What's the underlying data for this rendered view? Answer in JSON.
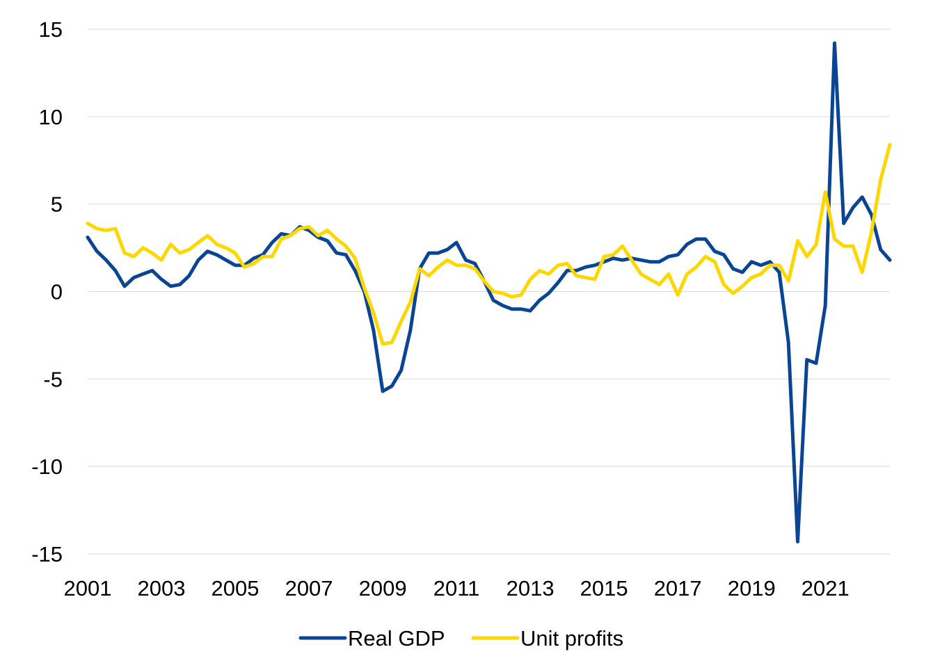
{
  "colors": {
    "background": "#ffffff",
    "grid": "#d9d9d9",
    "text": "#000000"
  },
  "chart_data": {
    "type": "line",
    "title": "",
    "xlabel": "",
    "ylabel": "",
    "xlim": [
      2001.0,
      2022.75
    ],
    "ylim": [
      -15,
      15
    ],
    "y_ticks": [
      15,
      10,
      5,
      0,
      -5,
      -10,
      -15
    ],
    "x_ticks": [
      2001,
      2003,
      2005,
      2007,
      2009,
      2011,
      2013,
      2015,
      2017,
      2019,
      2021
    ],
    "grid": "horizontal",
    "legend_position": "bottom-center",
    "x": [
      2001.0,
      2001.25,
      2001.5,
      2001.75,
      2002.0,
      2002.25,
      2002.5,
      2002.75,
      2003.0,
      2003.25,
      2003.5,
      2003.75,
      2004.0,
      2004.25,
      2004.5,
      2004.75,
      2005.0,
      2005.25,
      2005.5,
      2005.75,
      2006.0,
      2006.25,
      2006.5,
      2006.75,
      2007.0,
      2007.25,
      2007.5,
      2007.75,
      2008.0,
      2008.25,
      2008.5,
      2008.75,
      2009.0,
      2009.25,
      2009.5,
      2009.75,
      2010.0,
      2010.25,
      2010.5,
      2010.75,
      2011.0,
      2011.25,
      2011.5,
      2011.75,
      2012.0,
      2012.25,
      2012.5,
      2012.75,
      2013.0,
      2013.25,
      2013.5,
      2013.75,
      2014.0,
      2014.25,
      2014.5,
      2014.75,
      2015.0,
      2015.25,
      2015.5,
      2015.75,
      2016.0,
      2016.25,
      2016.5,
      2016.75,
      2017.0,
      2017.25,
      2017.5,
      2017.75,
      2018.0,
      2018.25,
      2018.5,
      2018.75,
      2019.0,
      2019.25,
      2019.5,
      2019.75,
      2020.0,
      2020.25,
      2020.5,
      2020.75,
      2021.0,
      2021.25,
      2021.5,
      2021.75,
      2022.0,
      2022.25,
      2022.5,
      2022.75
    ],
    "series": [
      {
        "name": "Real GDP",
        "color": "#0a4595",
        "values": [
          3.1,
          2.3,
          1.8,
          1.2,
          0.3,
          0.8,
          1.0,
          1.2,
          0.7,
          0.3,
          0.4,
          0.9,
          1.8,
          2.3,
          2.1,
          1.8,
          1.5,
          1.5,
          1.9,
          2.1,
          2.8,
          3.3,
          3.2,
          3.7,
          3.5,
          3.1,
          2.9,
          2.2,
          2.1,
          1.2,
          0.0,
          -2.2,
          -5.7,
          -5.4,
          -4.5,
          -2.2,
          1.3,
          2.2,
          2.2,
          2.4,
          2.8,
          1.8,
          1.6,
          0.6,
          -0.5,
          -0.8,
          -1.0,
          -1.0,
          -1.1,
          -0.5,
          -0.1,
          0.5,
          1.2,
          1.2,
          1.4,
          1.5,
          1.7,
          1.9,
          1.8,
          1.9,
          1.8,
          1.7,
          1.7,
          2.0,
          2.1,
          2.7,
          3.0,
          3.0,
          2.3,
          2.1,
          1.3,
          1.1,
          1.7,
          1.5,
          1.7,
          1.1,
          -2.9,
          -14.3,
          -3.9,
          -4.1,
          -0.8,
          14.2,
          3.9,
          4.8,
          5.4,
          4.4,
          2.4,
          1.8
        ]
      },
      {
        "name": "Unit profits",
        "color": "#ffd700",
        "values": [
          3.9,
          3.6,
          3.5,
          3.6,
          2.2,
          2.0,
          2.5,
          2.2,
          1.8,
          2.7,
          2.2,
          2.4,
          2.8,
          3.2,
          2.7,
          2.5,
          2.2,
          1.4,
          1.6,
          2.0,
          2.0,
          3.0,
          3.2,
          3.6,
          3.7,
          3.2,
          3.5,
          3.0,
          2.6,
          1.9,
          0.2,
          -1.2,
          -3.0,
          -2.9,
          -1.7,
          -0.6,
          1.3,
          0.9,
          1.4,
          1.8,
          1.5,
          1.5,
          1.3,
          0.6,
          0.0,
          -0.1,
          -0.3,
          -0.2,
          0.7,
          1.2,
          1.0,
          1.5,
          1.6,
          0.9,
          0.8,
          0.7,
          2.0,
          2.1,
          2.6,
          1.8,
          1.0,
          0.7,
          0.4,
          1.0,
          -0.2,
          1.0,
          1.4,
          2.0,
          1.7,
          0.4,
          -0.1,
          0.3,
          0.8,
          1.0,
          1.5,
          1.5,
          0.6,
          2.9,
          2.0,
          2.7,
          5.7,
          3.0,
          2.6,
          2.6,
          1.1,
          3.4,
          6.4,
          8.4
        ]
      }
    ]
  }
}
